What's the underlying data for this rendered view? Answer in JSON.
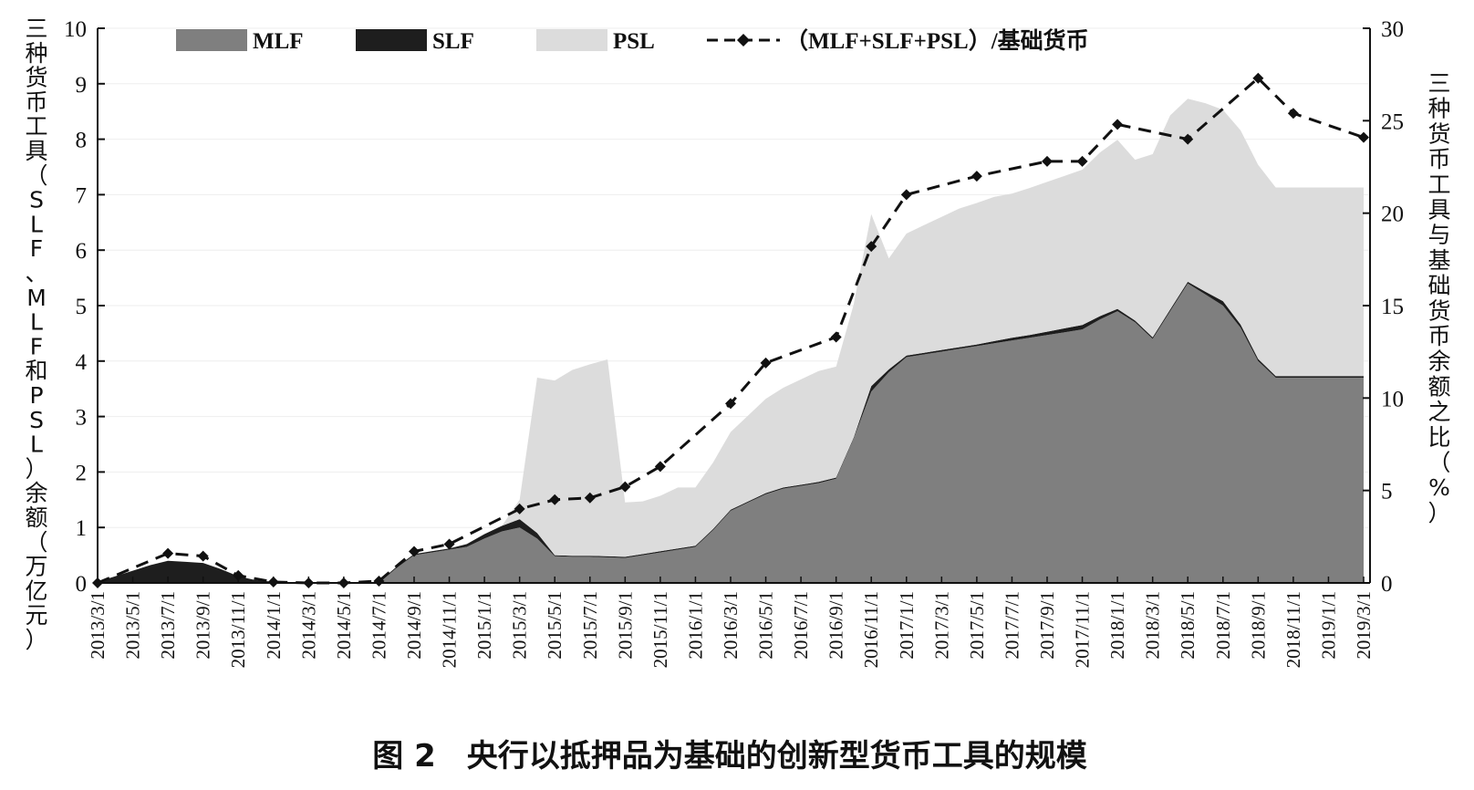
{
  "chart_data": {
    "type": "area",
    "title": "图 2　央行以抵押品为基础的创新型货币工具的规模",
    "ylabel_left": "三种货币工具（SLF、MLF和PSL）余额（万亿元）",
    "ylabel_right": "三种货币工具与基础货币余额之比（%）",
    "ylim_left": [
      0,
      10
    ],
    "ylim_right": [
      0,
      30
    ],
    "yticks_left": [
      0,
      1,
      2,
      3,
      4,
      5,
      6,
      7,
      8,
      9,
      10
    ],
    "yticks_right": [
      0,
      5,
      10,
      15,
      20,
      25,
      30
    ],
    "x": [
      "2013/3/1",
      "2013/4/1",
      "2013/5/1",
      "2013/6/1",
      "2013/7/1",
      "2013/8/1",
      "2013/9/1",
      "2013/10/1",
      "2013/11/1",
      "2013/12/1",
      "2014/1/1",
      "2014/2/1",
      "2014/3/1",
      "2014/4/1",
      "2014/5/1",
      "2014/6/1",
      "2014/7/1",
      "2014/8/1",
      "2014/9/1",
      "2014/10/1",
      "2014/11/1",
      "2014/12/1",
      "2015/1/1",
      "2015/2/1",
      "2015/3/1",
      "2015/4/1",
      "2015/5/1",
      "2015/6/1",
      "2015/7/1",
      "2015/8/1",
      "2015/9/1",
      "2015/10/1",
      "2015/11/1",
      "2015/12/1",
      "2016/1/1",
      "2016/2/1",
      "2016/3/1",
      "2016/4/1",
      "2016/5/1",
      "2016/6/1",
      "2016/7/1",
      "2016/8/1",
      "2016/9/1",
      "2016/10/1",
      "2016/11/1",
      "2016/12/1",
      "2017/1/1",
      "2017/2/1",
      "2017/3/1",
      "2017/4/1",
      "2017/5/1",
      "2017/6/1",
      "2017/7/1",
      "2017/8/1",
      "2017/9/1",
      "2017/10/1",
      "2017/11/1",
      "2017/12/1",
      "2018/1/1",
      "2018/2/1",
      "2018/3/1",
      "2018/4/1",
      "2018/5/1",
      "2018/6/1",
      "2018/7/1",
      "2018/8/1",
      "2018/9/1",
      "2018/10/1",
      "2018/11/1",
      "2018/12/1",
      "2019/1/1",
      "2019/2/1",
      "2019/3/1"
    ],
    "xtick_labels": [
      "2013/3/1",
      "2013/5/1",
      "2013/7/1",
      "2013/9/1",
      "2013/11/1",
      "2014/1/1",
      "2014/3/1",
      "2014/5/1",
      "2014/7/1",
      "2014/9/1",
      "2014/11/1",
      "2015/1/1",
      "2015/3/1",
      "2015/5/1",
      "2015/7/1",
      "2015/9/1",
      "2015/11/1",
      "2016/1/1",
      "2016/3/1",
      "2016/5/1",
      "2016/7/1",
      "2016/9/1",
      "2016/11/1",
      "2017/1/1",
      "2017/3/1",
      "2017/5/1",
      "2017/7/1",
      "2017/9/1",
      "2017/11/1",
      "2018/1/1",
      "2018/3/1",
      "2018/5/1",
      "2018/7/1",
      "2018/9/1",
      "2018/11/1",
      "2019/1/1",
      "2019/3/1"
    ],
    "series": [
      {
        "name": "MLF",
        "type": "stacked-area",
        "axis": "left",
        "color": "#7f7f7f",
        "values": [
          0,
          0,
          0,
          0,
          0,
          0,
          0,
          0,
          0,
          0,
          0,
          0,
          0,
          0,
          0,
          0,
          0,
          0.27,
          0.5,
          0.55,
          0.6,
          0.65,
          0.8,
          0.93,
          1.0,
          0.8,
          0.48,
          0.47,
          0.47,
          0.46,
          0.45,
          0.5,
          0.55,
          0.6,
          0.65,
          0.95,
          1.3,
          1.45,
          1.6,
          1.7,
          1.75,
          1.8,
          1.88,
          2.6,
          3.45,
          3.8,
          4.07,
          4.12,
          4.17,
          4.22,
          4.27,
          4.32,
          4.37,
          4.42,
          4.47,
          4.52,
          4.57,
          4.75,
          4.9,
          4.7,
          4.4,
          4.9,
          5.4,
          5.2,
          5.0,
          4.6,
          4.0,
          3.7,
          3.7,
          3.7,
          3.7,
          3.7,
          3.7
        ]
      },
      {
        "name": "SLF",
        "type": "stacked-area",
        "axis": "left",
        "color": "#1e1e1e",
        "values": [
          0.02,
          0.12,
          0.22,
          0.32,
          0.4,
          0.38,
          0.36,
          0.25,
          0.12,
          0.05,
          0.02,
          0,
          0,
          0,
          0,
          0,
          0.02,
          0.02,
          0.02,
          0.02,
          0.02,
          0.05,
          0.08,
          0.1,
          0.15,
          0.1,
          0.02,
          0.02,
          0.02,
          0.02,
          0.02,
          0.02,
          0.02,
          0.02,
          0.02,
          0.02,
          0.02,
          0.02,
          0.02,
          0.02,
          0.02,
          0.02,
          0.02,
          0.02,
          0.1,
          0.05,
          0.03,
          0.03,
          0.03,
          0.03,
          0.03,
          0.04,
          0.05,
          0.05,
          0.06,
          0.07,
          0.08,
          0.06,
          0.04,
          0.03,
          0.03,
          0.03,
          0.03,
          0.05,
          0.08,
          0.06,
          0.04,
          0.03,
          0.03,
          0.03,
          0.03,
          0.03,
          0.03
        ]
      },
      {
        "name": "PSL",
        "type": "stacked-area",
        "axis": "left",
        "color": "#dcdcdc",
        "values": [
          0,
          0,
          0,
          0,
          0,
          0,
          0,
          0,
          0,
          0,
          0,
          0,
          0,
          0,
          0,
          0,
          0,
          0,
          0,
          0,
          0,
          0,
          0,
          0,
          0.35,
          2.8,
          3.15,
          3.35,
          3.45,
          3.55,
          0.98,
          0.95,
          1.0,
          1.1,
          1.05,
          1.2,
          1.4,
          1.55,
          1.7,
          1.8,
          1.9,
          2.0,
          2.0,
          2.4,
          3.1,
          2.0,
          2.2,
          2.3,
          2.4,
          2.5,
          2.55,
          2.6,
          2.6,
          2.65,
          2.7,
          2.75,
          2.8,
          2.95,
          3.05,
          2.9,
          3.3,
          3.5,
          3.3,
          3.4,
          3.45,
          3.5,
          3.5,
          3.4,
          3.4,
          3.4,
          3.4,
          3.4,
          3.4
        ]
      },
      {
        "name": "（MLF+SLF+PSL）/基础货币",
        "type": "line",
        "axis": "right",
        "style": "dashed",
        "marker": "diamond",
        "color": "#111111",
        "points": [
          {
            "x": "2013/3/1",
            "y": 0
          },
          {
            "x": "2013/7/1",
            "y": 1.6
          },
          {
            "x": "2013/9/1",
            "y": 1.45
          },
          {
            "x": "2013/11/1",
            "y": 0.4
          },
          {
            "x": "2014/1/1",
            "y": 0.05
          },
          {
            "x": "2014/3/1",
            "y": 0
          },
          {
            "x": "2014/5/1",
            "y": 0
          },
          {
            "x": "2014/7/1",
            "y": 0.1
          },
          {
            "x": "2014/9/1",
            "y": 1.7
          },
          {
            "x": "2014/11/1",
            "y": 2.1
          },
          {
            "x": "2015/3/1",
            "y": 4.0
          },
          {
            "x": "2015/5/1",
            "y": 4.5
          },
          {
            "x": "2015/7/1",
            "y": 4.6
          },
          {
            "x": "2015/9/1",
            "y": 5.2
          },
          {
            "x": "2015/11/1",
            "y": 6.3
          },
          {
            "x": "2016/3/1",
            "y": 9.7
          },
          {
            "x": "2016/5/1",
            "y": 11.9
          },
          {
            "x": "2016/9/1",
            "y": 13.3
          },
          {
            "x": "2016/11/1",
            "y": 18.2
          },
          {
            "x": "2017/1/1",
            "y": 21.0
          },
          {
            "x": "2017/5/1",
            "y": 22.0
          },
          {
            "x": "2017/9/1",
            "y": 22.8
          },
          {
            "x": "2017/11/1",
            "y": 22.8
          },
          {
            "x": "2018/1/1",
            "y": 24.8
          },
          {
            "x": "2018/5/1",
            "y": 24.0
          },
          {
            "x": "2018/9/1",
            "y": 27.3
          },
          {
            "x": "2018/11/1",
            "y": 25.4
          },
          {
            "x": "2019/3/1",
            "y": 24.1
          }
        ]
      }
    ],
    "legend": [
      {
        "label": "MLF",
        "kind": "swatch",
        "color": "#7f7f7f"
      },
      {
        "label": "SLF",
        "kind": "swatch",
        "color": "#1e1e1e"
      },
      {
        "label": "PSL",
        "kind": "swatch",
        "color": "#dcdcdc"
      },
      {
        "label": "（MLF+SLF+PSL）/基础货币",
        "kind": "line-diamond",
        "color": "#111111"
      }
    ],
    "legend_position": "top"
  }
}
